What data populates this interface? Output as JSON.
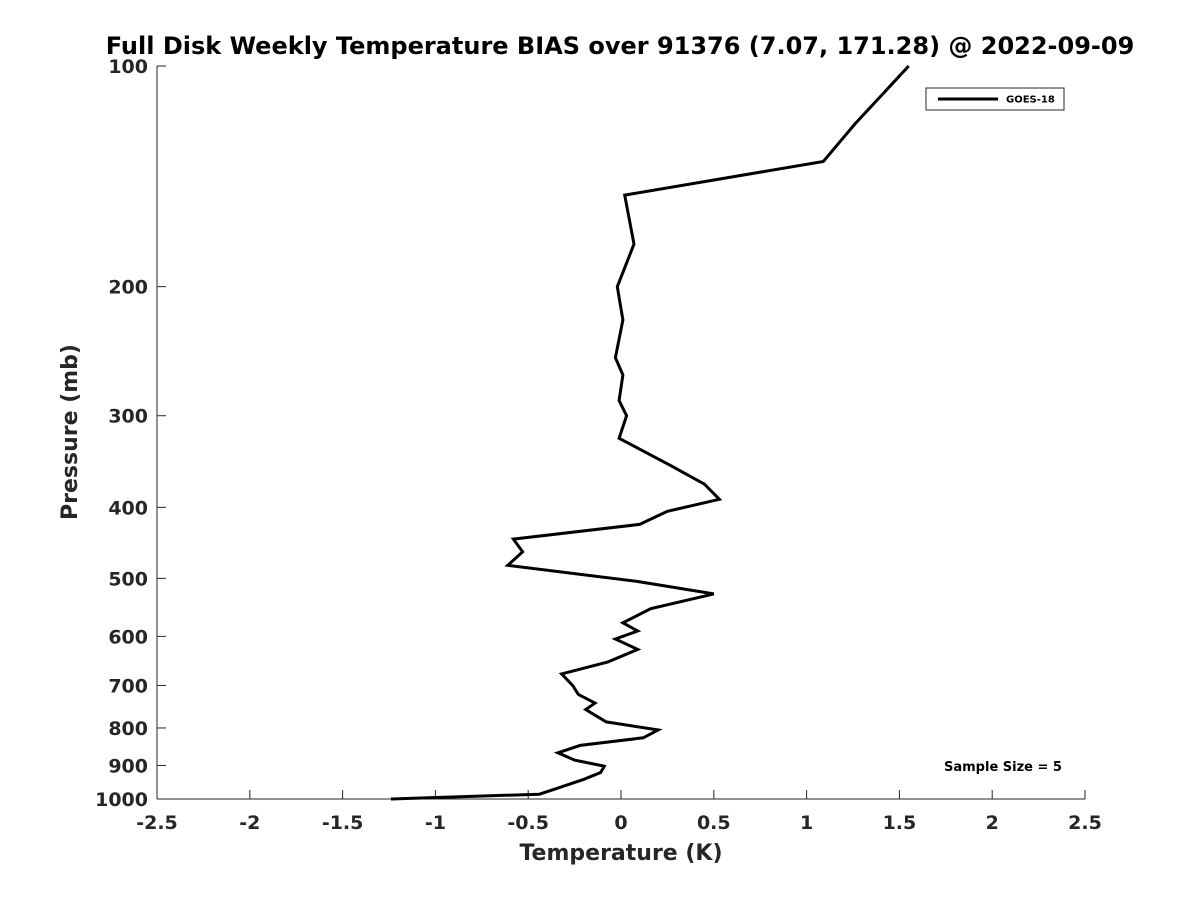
{
  "chart_data": {
    "type": "line",
    "title": "Full Disk Weekly Temperature BIAS over 91376 (7.07, 171.28) @ 2022-09-09",
    "xlabel": "Temperature (K)",
    "ylabel": "Pressure (mb)",
    "xlim": [
      -2.5,
      2.5
    ],
    "ylim": [
      1000,
      100
    ],
    "y_scale": "log",
    "y_reversed": true,
    "x_ticks": [
      -2.5,
      -2,
      -1.5,
      -1,
      -0.5,
      0,
      0.5,
      1,
      1.5,
      2,
      2.5
    ],
    "x_tick_labels": [
      "-2.5",
      "-2",
      "-1.5",
      "-1",
      "-0.5",
      "0",
      "0.5",
      "1",
      "1.5",
      "2",
      "2.5"
    ],
    "y_ticks": [
      100,
      200,
      300,
      400,
      500,
      600,
      700,
      800,
      900,
      1000
    ],
    "y_tick_labels": [
      "100",
      "200",
      "300",
      "400",
      "500",
      "600",
      "700",
      "800",
      "900",
      "1000"
    ],
    "grid": false,
    "legend_position": "top-right",
    "series": [
      {
        "name": "GOES-18",
        "color": "#000000",
        "points": [
          {
            "x": 1.55,
            "y": 100
          },
          {
            "x": 1.26,
            "y": 120
          },
          {
            "x": 1.09,
            "y": 135
          },
          {
            "x": 0.02,
            "y": 150
          },
          {
            "x": 0.07,
            "y": 175
          },
          {
            "x": -0.02,
            "y": 200
          },
          {
            "x": 0.01,
            "y": 222
          },
          {
            "x": -0.03,
            "y": 250
          },
          {
            "x": 0.01,
            "y": 264
          },
          {
            "x": -0.01,
            "y": 286
          },
          {
            "x": 0.03,
            "y": 300
          },
          {
            "x": -0.01,
            "y": 322
          },
          {
            "x": 0.26,
            "y": 350
          },
          {
            "x": 0.45,
            "y": 372
          },
          {
            "x": 0.53,
            "y": 390
          },
          {
            "x": 0.25,
            "y": 405
          },
          {
            "x": 0.1,
            "y": 422
          },
          {
            "x": -0.58,
            "y": 442
          },
          {
            "x": -0.53,
            "y": 460
          },
          {
            "x": -0.61,
            "y": 480
          },
          {
            "x": 0.09,
            "y": 505
          },
          {
            "x": 0.5,
            "y": 525
          },
          {
            "x": 0.16,
            "y": 550
          },
          {
            "x": 0.01,
            "y": 575
          },
          {
            "x": 0.09,
            "y": 590
          },
          {
            "x": -0.03,
            "y": 605
          },
          {
            "x": 0.09,
            "y": 625
          },
          {
            "x": -0.07,
            "y": 650
          },
          {
            "x": -0.32,
            "y": 675
          },
          {
            "x": -0.26,
            "y": 700
          },
          {
            "x": -0.23,
            "y": 720
          },
          {
            "x": -0.14,
            "y": 740
          },
          {
            "x": -0.19,
            "y": 755
          },
          {
            "x": -0.08,
            "y": 785
          },
          {
            "x": 0.2,
            "y": 805
          },
          {
            "x": 0.12,
            "y": 825
          },
          {
            "x": -0.22,
            "y": 845
          },
          {
            "x": -0.34,
            "y": 865
          },
          {
            "x": -0.25,
            "y": 885
          },
          {
            "x": -0.09,
            "y": 902
          },
          {
            "x": -0.11,
            "y": 920
          },
          {
            "x": -0.2,
            "y": 940
          },
          {
            "x": -0.36,
            "y": 970
          },
          {
            "x": -0.44,
            "y": 985
          },
          {
            "x": -1.24,
            "y": 1000
          }
        ]
      }
    ],
    "legend": [
      {
        "label": "GOES-18",
        "color": "#000000"
      }
    ],
    "annotation": "Sample Size = 5"
  }
}
